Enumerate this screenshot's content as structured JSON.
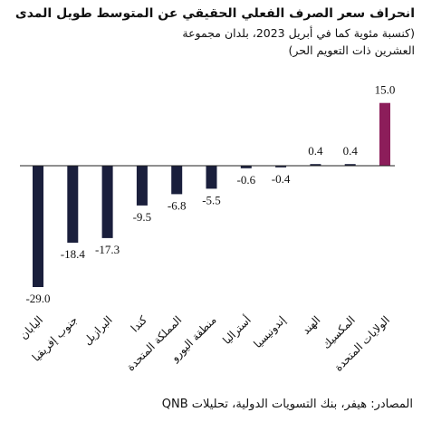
{
  "chart_data": {
    "type": "bar",
    "title": "انحراف سعر الصرف الفعلي الحقيقي عن المتوسط طويل المدى",
    "subtitle_lines": [
      "(كنسبة مئوية كما في أبريل 2023، بلدان مجموعة",
      "العشرين ذات التعويم الحر)"
    ],
    "categories": [
      "اليابان",
      "جنوب إفريقيا",
      "البرازيل",
      "كندا",
      "المملكة المتحدة",
      "منطقة اليورو",
      "أستراليا",
      "إندونيسيا",
      "الهند",
      "المكسيك",
      "الولايات المتحدة"
    ],
    "values": [
      -29.0,
      -18.4,
      -17.3,
      -9.5,
      -6.8,
      -5.5,
      -0.6,
      -0.4,
      0.4,
      0.4,
      15.0
    ],
    "value_labels": [
      "-29.0",
      "-18.4",
      "-17.3",
      "-9.5",
      "-6.8",
      "-5.5",
      "-0.6",
      "-0.4",
      "0.4",
      "0.4",
      "15.0"
    ],
    "colors": {
      "default": "#1a1f3c",
      "highlight": "#8c1d5a"
    },
    "highlight_category": "الولايات المتحدة",
    "ylim": [
      -29.0,
      15.0
    ],
    "grid": false,
    "xlabel": "",
    "ylabel": ""
  },
  "source": "المصادر: هيفر، بنك التسويات الدولية، تحليلات QNB"
}
